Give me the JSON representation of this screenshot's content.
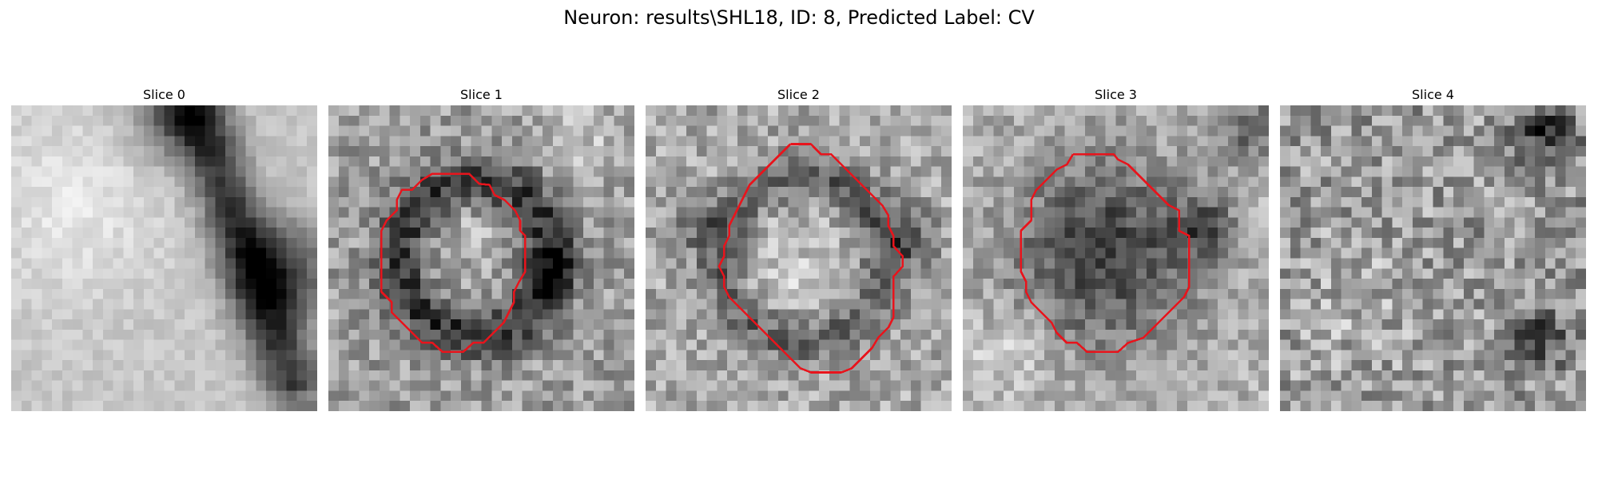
{
  "figure": {
    "title": "Neuron: results\\SHL18, ID: 8, Predicted Label: CV"
  },
  "contour_color": "#e8141c",
  "grid_size": 30,
  "panels": [
    {
      "title": "Slice 0",
      "has_contour": false
    },
    {
      "title": "Slice 1",
      "has_contour": true
    },
    {
      "title": "Slice 2",
      "has_contour": true
    },
    {
      "title": "Slice 3",
      "has_contour": true
    },
    {
      "title": "Slice 4",
      "has_contour": false
    }
  ]
}
